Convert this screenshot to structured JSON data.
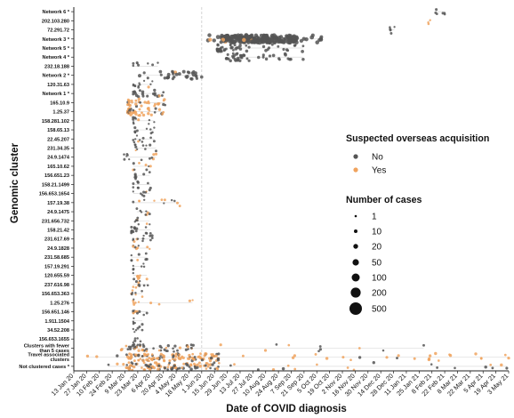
{
  "chart_data": {
    "type": "scatter",
    "xlabel": "Date of COVID diagnosis",
    "ylabel": "Genomic cluster",
    "x_ticks": [
      "13 Jan 20",
      "27 Jan 20",
      "10 Feb 20",
      "24 Feb 20",
      "9 Mar 20",
      "23 Mar 20",
      "6 Apr 20",
      "20 Apr 20",
      "4 May 20",
      "18 May 20",
      "1 Jun 20",
      "15 Jun 20",
      "29 Jun 20",
      "13 Jul 20",
      "27 Jul 20",
      "10 Aug 20",
      "24 Aug 20",
      "7 Sep 20",
      "21 Sep 20",
      "5 Oct 20",
      "19 Oct 20",
      "2 Nov 20",
      "16 Nov 20",
      "30 Nov 20",
      "14 Dec 20",
      "28 Dec 20",
      "11 Jan 21",
      "25 Jan 21",
      "8 Feb 21",
      "22 Feb 21",
      "8 Mar 21",
      "22 Mar 21",
      "5 Apr 21",
      "19 Apr 21",
      "3 May 21"
    ],
    "x_range": [
      "2020-01-13",
      "2021-05-03"
    ],
    "reference_line": "2020-06-01",
    "categories": [
      "Network 6 *",
      "202.103.280",
      "72.291.72",
      "Network 3 *",
      "Network 5 *",
      "Network 4 *",
      "232.18.188",
      "Network 2 *",
      "120.31.63",
      "Network 1 *",
      "165.10.9",
      "1.25.37",
      "158.281.102",
      "158.65.13",
      "22.45.207",
      "231.34.35",
      "24.9.1474",
      "165.10.62",
      "156.651.23",
      "158.21.1499",
      "156.653.1654",
      "157.19.38",
      "24.9.1475",
      "231.656.732",
      "158.21.42",
      "231.617.69",
      "24.9.1828",
      "231.58.685",
      "157.19.291",
      "120.655.59",
      "237.616.98",
      "156.653.363",
      "1.25.276",
      "156.651.146",
      "1.911.1504",
      "34.52.208",
      "156.653.1655",
      "Clusters with fewer than 5 cases",
      "Travel associated clusters",
      "Not clustered cases *"
    ],
    "clusters": [
      {
        "label": "Network 6 *",
        "start": "2021-02-12",
        "end": "2021-02-22",
        "n": 6,
        "overseas": 0.0,
        "size": 2
      },
      {
        "label": "202.103.280",
        "start": "2021-02-04",
        "end": "2021-02-06",
        "n": 3,
        "overseas": 1.0,
        "size": 2
      },
      {
        "label": "72.291.72",
        "start": "2020-12-24",
        "end": "2020-12-29",
        "n": 5,
        "overseas": 0.3,
        "size": 2
      },
      {
        "label": "Network 3 *",
        "start": "2020-06-08",
        "end": "2020-10-10",
        "n": 230,
        "overseas": 0.03,
        "size": 3.6,
        "dense_start": "2020-06-22",
        "dense_end": "2020-09-15"
      },
      {
        "label": "Network 5 *",
        "start": "2020-06-18",
        "end": "2020-09-20",
        "n": 45,
        "overseas": 0.0,
        "size": 2.5
      },
      {
        "label": "Network 4 *",
        "start": "2020-06-28",
        "end": "2020-09-20",
        "n": 40,
        "overseas": 0.0,
        "size": 2.5
      },
      {
        "label": "232.18.188",
        "start": "2020-03-18",
        "end": "2020-04-14",
        "n": 8,
        "overseas": 0.0,
        "size": 2
      },
      {
        "label": "Network 2 *",
        "start": "2020-03-25",
        "end": "2020-06-01",
        "n": 35,
        "overseas": 0.02,
        "size": 2.8,
        "dense_start": "2020-04-20",
        "dense_end": "2020-05-28"
      },
      {
        "label": "120.31.63",
        "start": "2020-03-18",
        "end": "2020-04-08",
        "n": 12,
        "overseas": 0.05,
        "size": 2
      },
      {
        "label": "Network 1 *",
        "start": "2020-03-18",
        "end": "2020-04-20",
        "n": 22,
        "overseas": 0.05,
        "size": 2.4
      },
      {
        "label": "165.10.9",
        "start": "2020-03-12",
        "end": "2020-04-22",
        "n": 30,
        "overseas": 0.75,
        "size": 2.3
      },
      {
        "label": "1.25.37",
        "start": "2020-03-12",
        "end": "2020-04-20",
        "n": 40,
        "overseas": 0.75,
        "size": 2.4
      },
      {
        "label": "158.281.102",
        "start": "2020-03-18",
        "end": "2020-04-10",
        "n": 10,
        "overseas": 0.3,
        "size": 2
      },
      {
        "label": "158.65.13",
        "start": "2020-03-20",
        "end": "2020-04-10",
        "n": 10,
        "overseas": 0.1,
        "size": 2
      },
      {
        "label": "22.45.207",
        "start": "2020-03-18",
        "end": "2020-04-10",
        "n": 10,
        "overseas": 0.2,
        "size": 2
      },
      {
        "label": "231.34.35",
        "start": "2020-03-20",
        "end": "2020-04-12",
        "n": 10,
        "overseas": 0.1,
        "size": 2
      },
      {
        "label": "24.9.1474",
        "start": "2020-03-08",
        "end": "2020-04-12",
        "n": 12,
        "overseas": 0.4,
        "size": 2
      },
      {
        "label": "165.10.62",
        "start": "2020-03-18",
        "end": "2020-04-06",
        "n": 8,
        "overseas": 0.4,
        "size": 2
      },
      {
        "label": "156.651.23",
        "start": "2020-03-20",
        "end": "2020-04-05",
        "n": 8,
        "overseas": 0.2,
        "size": 2
      },
      {
        "label": "158.21.1499",
        "start": "2020-03-18",
        "end": "2020-04-06",
        "n": 8,
        "overseas": 0.2,
        "size": 2
      },
      {
        "label": "156.653.1654",
        "start": "2020-03-18",
        "end": "2020-04-05",
        "n": 8,
        "overseas": 0.5,
        "size": 2
      },
      {
        "label": "157.19.38",
        "start": "2020-03-18",
        "end": "2020-05-08",
        "n": 12,
        "overseas": 0.4,
        "size": 2
      },
      {
        "label": "24.9.1475",
        "start": "2020-03-22",
        "end": "2020-04-05",
        "n": 8,
        "overseas": 0.2,
        "size": 2
      },
      {
        "label": "231.656.732",
        "start": "2020-03-20",
        "end": "2020-04-05",
        "n": 8,
        "overseas": 0.3,
        "size": 2
      },
      {
        "label": "158.21.42",
        "start": "2020-03-16",
        "end": "2020-04-06",
        "n": 14,
        "overseas": 0.2,
        "size": 2.2
      },
      {
        "label": "231.617.69",
        "start": "2020-03-18",
        "end": "2020-04-08",
        "n": 12,
        "overseas": 0.3,
        "size": 2
      },
      {
        "label": "24.9.1828",
        "start": "2020-03-18",
        "end": "2020-04-05",
        "n": 8,
        "overseas": 0.3,
        "size": 2
      },
      {
        "label": "231.58.685",
        "start": "2020-03-16",
        "end": "2020-04-02",
        "n": 8,
        "overseas": 0.2,
        "size": 2
      },
      {
        "label": "157.19.291",
        "start": "2020-03-18",
        "end": "2020-03-30",
        "n": 6,
        "overseas": 0.3,
        "size": 2
      },
      {
        "label": "120.655.59",
        "start": "2020-03-18",
        "end": "2020-04-02",
        "n": 8,
        "overseas": 0.3,
        "size": 2
      },
      {
        "label": "237.616.98",
        "start": "2020-03-18",
        "end": "2020-04-03",
        "n": 10,
        "overseas": 0.6,
        "size": 2
      },
      {
        "label": "156.653.363",
        "start": "2020-03-16",
        "end": "2020-03-28",
        "n": 8,
        "overseas": 0.3,
        "size": 2
      },
      {
        "label": "1.25.276",
        "start": "2020-03-18",
        "end": "2020-05-22",
        "n": 10,
        "overseas": 0.6,
        "size": 2
      },
      {
        "label": "156.651.146",
        "start": "2020-03-18",
        "end": "2020-04-02",
        "n": 10,
        "overseas": 0.3,
        "size": 2
      },
      {
        "label": "1.911.1504",
        "start": "2020-03-18",
        "end": "2020-03-28",
        "n": 6,
        "overseas": 0.3,
        "size": 2
      },
      {
        "label": "34.52.208",
        "start": "2020-03-18",
        "end": "2020-03-28",
        "n": 6,
        "overseas": 0.1,
        "size": 2
      },
      {
        "label": "156.653.1655",
        "start": "2020-03-18",
        "end": "2020-03-26",
        "n": 5,
        "overseas": 0.1,
        "size": 2
      },
      {
        "label": "Clusters with fewer than 5 cases",
        "start": "2020-03-05",
        "end": "2021-01-30",
        "n": 60,
        "overseas": 0.35,
        "size": 2.2,
        "dense_start": "2020-03-10",
        "dense_end": "2020-05-25"
      },
      {
        "label": "Travel associated clusters",
        "start": "2020-01-28",
        "end": "2021-05-03",
        "n": 140,
        "overseas": 0.7,
        "size": 2.3,
        "dense_start": "2020-03-08",
        "dense_end": "2020-06-20"
      },
      {
        "label": "Not clustered cases *",
        "start": "2020-02-20",
        "end": "2021-05-01",
        "n": 120,
        "overseas": 0.6,
        "size": 2.3,
        "dense_start": "2020-03-10",
        "dense_end": "2020-06-20"
      }
    ],
    "legend": {
      "color_title": "Suspected overseas acquisition",
      "color_items": [
        {
          "label": "No",
          "color": "#555555"
        },
        {
          "label": "Yes",
          "color": "#f0a35e"
        }
      ],
      "size_title": "Number of cases",
      "size_items": [
        {
          "label": "1"
        },
        {
          "label": "10"
        },
        {
          "label": "20"
        },
        {
          "label": "50"
        },
        {
          "label": "100"
        },
        {
          "label": "200"
        },
        {
          "label": "500"
        }
      ],
      "placement": "right"
    }
  }
}
